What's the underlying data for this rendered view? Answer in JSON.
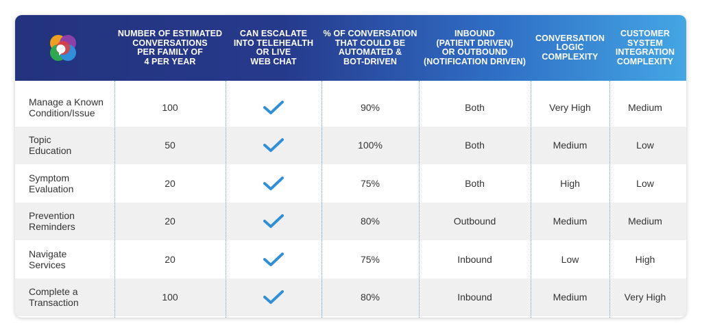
{
  "colors": {
    "header_start": "#23337d",
    "header_end": "#44a6e3",
    "check": "#2f8fd8",
    "divider": "#5aa5dc"
  },
  "header": {
    "logo_icon": "chat-bubble-logo-icon",
    "columns": [
      "NUMBER OF ESTIMATED\nCONVERSATIONS\nPER FAMILY OF\n4 PER YEAR",
      "CAN ESCALATE\nINTO TELEHEALTH\nOR LIVE\nWEB CHAT",
      "% OF CONVERSATION\nTHAT COULD BE\nAUTOMATED &\nBOT-DRIVEN",
      "INBOUND\n(PATIENT DRIVEN)\nOR OUTBOUND\n(NOTIFICATION DRIVEN)",
      "CONVERSATION\nLOGIC\nCOMPLEXITY",
      "CUSTOMER\nSYSTEM\nINTEGRATION\nCOMPLEXITY"
    ]
  },
  "rows": [
    {
      "label": "Manage a Known\nCondition/Issue",
      "conversations": "100",
      "escalate": "check-icon",
      "automated": "90%",
      "direction": "Both",
      "logic": "Very High",
      "integration": "Medium"
    },
    {
      "label": "Topic\nEducation",
      "conversations": "50",
      "escalate": "check-icon",
      "automated": "100%",
      "direction": "Both",
      "logic": "Medium",
      "integration": "Low"
    },
    {
      "label": "Symptom\nEvaluation",
      "conversations": "20",
      "escalate": "check-icon",
      "automated": "75%",
      "direction": "Both",
      "logic": "High",
      "integration": "Low"
    },
    {
      "label": "Prevention\nReminders",
      "conversations": "20",
      "escalate": "check-icon",
      "automated": "80%",
      "direction": "Outbound",
      "logic": "Medium",
      "integration": "Medium"
    },
    {
      "label": "Navigate\nServices",
      "conversations": "20",
      "escalate": "check-icon",
      "automated": "75%",
      "direction": "Inbound",
      "logic": "Low",
      "integration": "High"
    },
    {
      "label": "Complete a\nTransaction",
      "conversations": "100",
      "escalate": "check-icon",
      "automated": "80%",
      "direction": "Inbound",
      "logic": "Medium",
      "integration": "Very High"
    }
  ]
}
